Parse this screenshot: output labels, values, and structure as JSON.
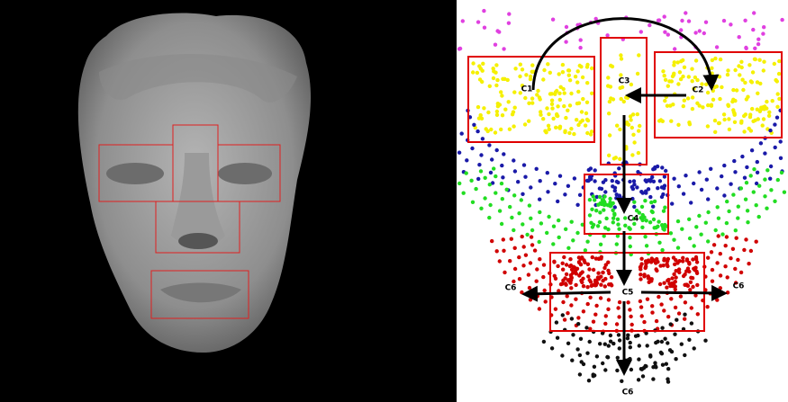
{
  "labels": [
    "C1",
    "C2",
    "C3",
    "C4",
    "C5",
    "C6",
    "C6",
    "C6"
  ]
}
